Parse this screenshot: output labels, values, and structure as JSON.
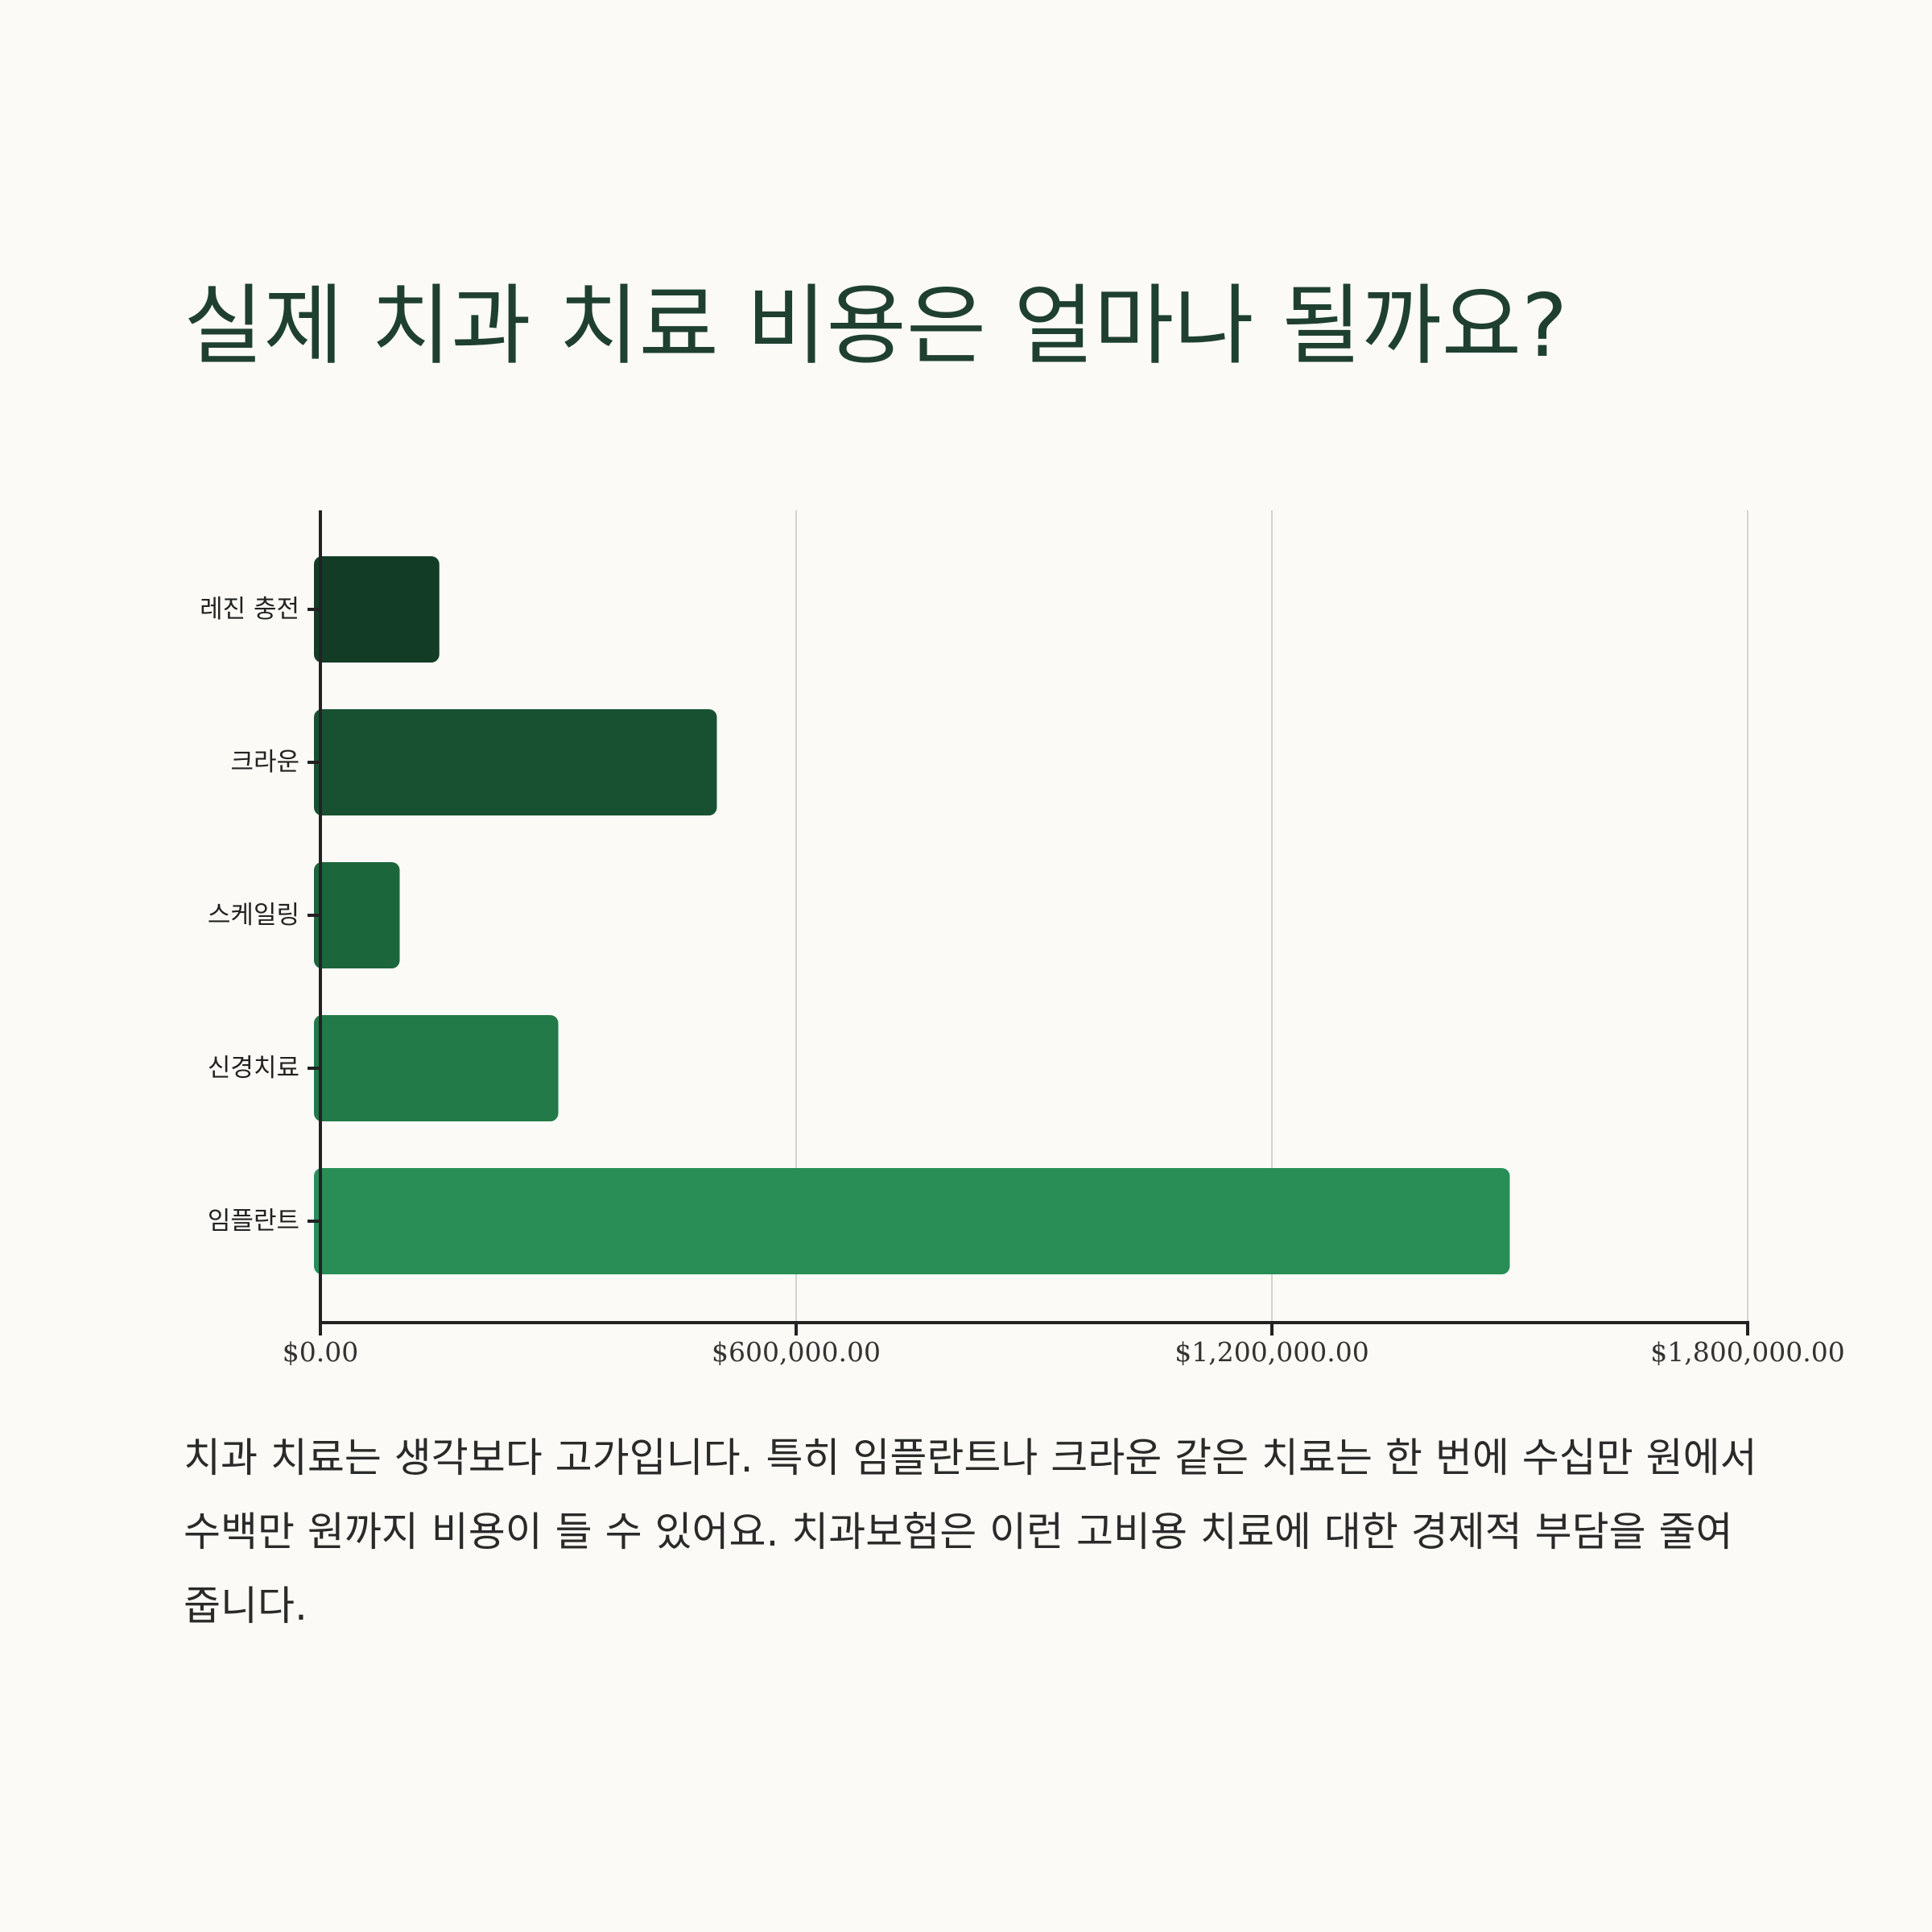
{
  "title": "실제 치과 치료 비용은 얼마나 될까요?",
  "description": "치과 치료는 생각보다 고가입니다. 특히 임플란트나 크라운 같은 치료는 한 번에 수십만 원에서 수백만 원까지 비용이 들 수 있어요. 치과보험은 이런 고비용 치료에 대한 경제적 부담을 줄여줍니다.",
  "chart_data": {
    "type": "bar",
    "orientation": "horizontal",
    "categories": [
      "레진 충전",
      "크라운",
      "스케일링",
      "신경치료",
      "임플란트"
    ],
    "values": [
      150000,
      500000,
      100000,
      300000,
      1500000
    ],
    "colors": [
      "#123c26",
      "#185131",
      "#1c663c",
      "#217a48",
      "#288e56"
    ],
    "xlim": [
      0,
      1800000
    ],
    "xticks": [
      0,
      600000,
      1200000,
      1800000
    ],
    "xtick_labels": [
      "$0.00",
      "$600,000.00",
      "$1,200,000.00",
      "$1,800,000.00"
    ],
    "grid": true,
    "xlabel": "",
    "ylabel": ""
  }
}
